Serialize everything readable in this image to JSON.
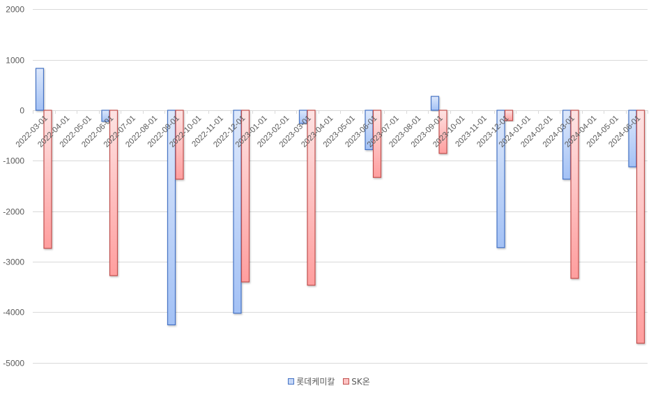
{
  "chart_data": {
    "type": "bar",
    "title": "",
    "xlabel": "",
    "ylabel": "",
    "ylim": [
      -5000,
      2000
    ],
    "yticks": [
      2000,
      1000,
      0,
      -1000,
      -2000,
      -3000,
      -4000,
      -5000
    ],
    "grid": true,
    "legend_position": "bottom",
    "categories": [
      "2022-03-01",
      "2022-04-01",
      "2022-05-01",
      "2022-06-01",
      "2022-07-01",
      "2022-08-01",
      "2022-09-01",
      "2022-10-01",
      "2022-11-01",
      "2022-12-01",
      "2023-01-01",
      "2023-02-01",
      "2023-03-01",
      "2023-04-01",
      "2023-05-01",
      "2023-06-01",
      "2023-07-01",
      "2023-08-01",
      "2023-09-01",
      "2023-10-01",
      "2023-11-01",
      "2023-12-01",
      "2024-01-01",
      "2024-02-01",
      "2024-03-01",
      "2024-04-01",
      "2024-05-01",
      "2024-06-01"
    ],
    "series": [
      {
        "name": "롯데케미칼",
        "color": "#4472C4",
        "fill_light": "#DDE8FB",
        "fill_dark": "#A3C1F5",
        "values": [
          830,
          null,
          null,
          -220,
          null,
          null,
          -4250,
          null,
          null,
          -4020,
          null,
          null,
          -260,
          null,
          null,
          -780,
          null,
          null,
          275,
          null,
          null,
          -2720,
          null,
          null,
          -1365,
          null,
          null,
          -1120
        ]
      },
      {
        "name": "SK온",
        "color": "#C0504D",
        "fill_light": "#FDE3E3",
        "fill_dark": "#FF9E9E",
        "values": [
          -2735,
          null,
          null,
          -3275,
          null,
          null,
          -1365,
          null,
          null,
          -3400,
          null,
          null,
          -3465,
          null,
          null,
          -1330,
          null,
          null,
          -855,
          null,
          null,
          -205,
          null,
          null,
          -3330,
          null,
          null,
          -4615
        ]
      }
    ]
  },
  "legend": {
    "items": [
      {
        "label": "롯데케미칼",
        "color": "#4472C4",
        "fill": "#C5D7F7"
      },
      {
        "label": "SK온",
        "color": "#C0504D",
        "fill": "#FFC4C4"
      }
    ]
  }
}
